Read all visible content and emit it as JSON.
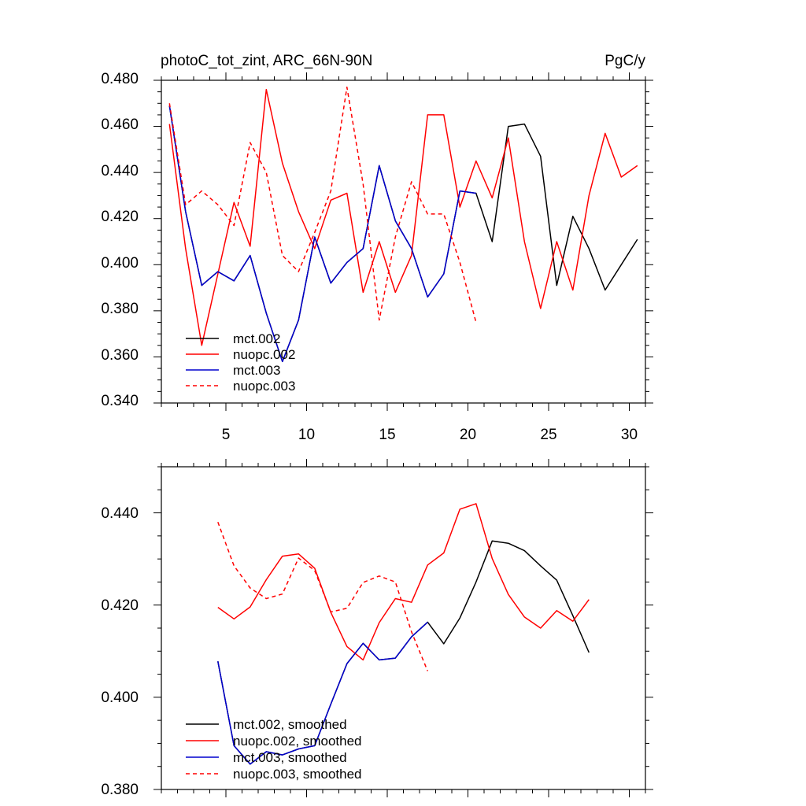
{
  "chart_data": [
    {
      "type": "line",
      "title": "photoC_tot_zint, ARC_66N-90N",
      "units": "PgC/y",
      "xlim": [
        1,
        31
      ],
      "ylim": [
        0.34,
        0.48
      ],
      "xticks": [
        5,
        10,
        15,
        20,
        25,
        30
      ],
      "xtick_labels": [
        "5",
        "10",
        "15",
        "20",
        "25",
        "30"
      ],
      "yticks": [
        0.34,
        0.36,
        0.38,
        0.4,
        0.42,
        0.44,
        0.46,
        0.48
      ],
      "ytick_labels": [
        "0.340",
        "0.360",
        "0.380",
        "0.400",
        "0.420",
        "0.440",
        "0.460",
        "0.480"
      ],
      "legend_position": "bottom-left",
      "series": [
        {
          "name": "mct.002",
          "color": "#000000",
          "dash": "solid",
          "x": [
            1.5,
            2.5,
            3.5,
            4.5,
            5.5,
            6.5,
            7.5,
            8.5,
            9.5,
            10.5,
            11.5,
            12.5,
            13.5,
            14.5,
            15.5,
            16.5,
            17.5,
            18.5,
            19.5,
            20.5,
            21.5,
            22.5,
            23.5,
            24.5,
            25.5,
            26.5,
            27.5,
            28.5,
            29.5,
            30.5
          ],
          "y": [
            0.469,
            0.423,
            0.391,
            0.397,
            0.393,
            0.404,
            0.379,
            0.358,
            0.376,
            0.412,
            0.392,
            0.401,
            0.407,
            0.443,
            0.419,
            0.407,
            0.386,
            0.396,
            0.432,
            0.431,
            0.41,
            0.46,
            0.461,
            0.447,
            0.391,
            0.421,
            0.407,
            0.389,
            0.4,
            0.411
          ]
        },
        {
          "name": "nuopc.002",
          "color": "#ff0000",
          "dash": "solid",
          "x": [
            1.5,
            2.5,
            3.5,
            4.5,
            5.5,
            6.5,
            7.5,
            8.5,
            9.5,
            10.5,
            11.5,
            12.5,
            13.5,
            14.5,
            15.5,
            16.5,
            17.5,
            18.5,
            19.5,
            20.5,
            21.5,
            22.5,
            23.5,
            24.5,
            25.5,
            26.5,
            27.5,
            28.5,
            29.5,
            30.5
          ],
          "y": [
            0.461,
            0.407,
            0.365,
            0.396,
            0.427,
            0.408,
            0.476,
            0.444,
            0.423,
            0.407,
            0.428,
            0.431,
            0.388,
            0.41,
            0.388,
            0.404,
            0.465,
            0.465,
            0.425,
            0.445,
            0.429,
            0.455,
            0.41,
            0.381,
            0.41,
            0.389,
            0.43,
            0.457,
            0.438,
            0.443
          ]
        },
        {
          "name": "mct.003",
          "color": "#0000cd",
          "dash": "solid",
          "x": [
            1.5,
            2.5,
            3.5,
            4.5,
            5.5,
            6.5,
            7.5,
            8.5,
            9.5,
            10.5,
            11.5,
            12.5,
            13.5,
            14.5,
            15.5,
            16.5,
            17.5,
            18.5,
            19.5,
            20.5
          ],
          "y": [
            0.469,
            0.423,
            0.391,
            0.397,
            0.393,
            0.404,
            0.379,
            0.358,
            0.376,
            0.412,
            0.392,
            0.401,
            0.407,
            0.443,
            0.419,
            0.407,
            0.386,
            0.396,
            0.432,
            0.431
          ]
        },
        {
          "name": "nuopc.003",
          "color": "#ff0000",
          "dash": "dashed",
          "x": [
            1.5,
            2.5,
            3.5,
            4.5,
            5.5,
            6.5,
            7.5,
            8.5,
            9.5,
            10.5,
            11.5,
            12.5,
            13.5,
            14.5,
            15.5,
            16.5,
            17.5,
            18.5,
            19.5,
            20.5
          ],
          "y": [
            0.47,
            0.426,
            0.432,
            0.426,
            0.417,
            0.453,
            0.44,
            0.404,
            0.397,
            0.414,
            0.432,
            0.477,
            0.435,
            0.376,
            0.412,
            0.436,
            0.422,
            0.422,
            0.401,
            0.375
          ]
        }
      ]
    },
    {
      "type": "line",
      "title": "",
      "xlim": [
        1,
        31
      ],
      "ylim": [
        0.38,
        0.45
      ],
      "xticks": [
        5,
        10,
        15,
        20,
        25,
        30
      ],
      "yticks": [
        0.38,
        0.4,
        0.42,
        0.44
      ],
      "ytick_labels": [
        "0.380",
        "0.400",
        "0.420",
        "0.440"
      ],
      "legend_position": "bottom-left",
      "series": [
        {
          "name": "mct.002, smoothed",
          "color": "#000000",
          "dash": "solid",
          "x": [
            4.5,
            5.5,
            6.5,
            7.5,
            8.5,
            9.5,
            10.5,
            11.5,
            12.5,
            13.5,
            14.5,
            15.5,
            16.5,
            17.5,
            18.5,
            19.5,
            20.5,
            21.5,
            22.5,
            23.5,
            24.5,
            25.5,
            26.5,
            27.5
          ],
          "y": [
            0.4078,
            0.3895,
            0.3855,
            0.3882,
            0.3875,
            0.3888,
            0.3895,
            0.3985,
            0.4073,
            0.4117,
            0.4081,
            0.4085,
            0.4131,
            0.4163,
            0.4116,
            0.4172,
            0.425,
            0.4339,
            0.4334,
            0.4318,
            0.4285,
            0.4254,
            0.4177,
            0.4097
          ]
        },
        {
          "name": "nuopc.002, smoothed",
          "color": "#ff0000",
          "dash": "solid",
          "x": [
            4.5,
            5.5,
            6.5,
            7.5,
            8.5,
            9.5,
            10.5,
            11.5,
            12.5,
            13.5,
            14.5,
            15.5,
            16.5,
            17.5,
            18.5,
            19.5,
            20.5,
            21.5,
            22.5,
            23.5,
            24.5,
            25.5,
            26.5,
            27.5
          ],
          "y": [
            0.4195,
            0.417,
            0.4196,
            0.4255,
            0.4306,
            0.4311,
            0.428,
            0.4184,
            0.411,
            0.4081,
            0.4162,
            0.4214,
            0.4206,
            0.4287,
            0.4313,
            0.4408,
            0.442,
            0.4301,
            0.4223,
            0.4174,
            0.415,
            0.4188,
            0.4165,
            0.4212
          ]
        },
        {
          "name": "mct.003, smoothed",
          "color": "#0000cd",
          "dash": "solid",
          "x": [
            4.5,
            5.5,
            6.5,
            7.5,
            8.5,
            9.5,
            10.5,
            11.5,
            12.5,
            13.5,
            14.5,
            15.5,
            16.5,
            17.5
          ],
          "y": [
            0.4078,
            0.3895,
            0.3855,
            0.3882,
            0.3875,
            0.3888,
            0.3895,
            0.3985,
            0.4073,
            0.4117,
            0.4081,
            0.4085,
            0.4131,
            0.4163
          ]
        },
        {
          "name": "nuopc.003, smoothed",
          "color": "#ff0000",
          "dash": "dashed",
          "x": [
            4.5,
            5.5,
            6.5,
            7.5,
            8.5,
            9.5,
            10.5,
            11.5,
            12.5,
            13.5,
            14.5,
            15.5,
            16.5,
            17.5
          ],
          "y": [
            0.438,
            0.4285,
            0.4237,
            0.4214,
            0.4224,
            0.4302,
            0.4275,
            0.4185,
            0.4193,
            0.4249,
            0.4263,
            0.425,
            0.4142,
            0.4057
          ]
        }
      ]
    }
  ]
}
